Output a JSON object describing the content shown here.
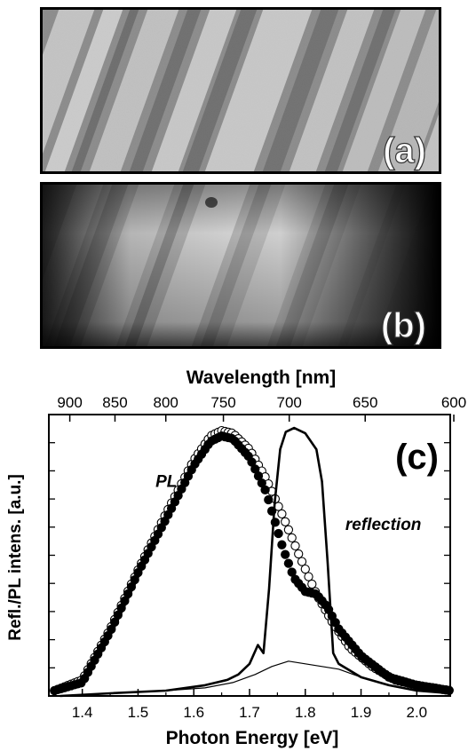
{
  "panels": {
    "a": {
      "label": "(a)"
    },
    "b": {
      "label": "(b)"
    },
    "c": {
      "label": "(c)"
    }
  },
  "chart_data": {
    "type": "scatter",
    "title": "",
    "xlabel": "Photon Energy [eV]",
    "ylabel": "Refl./PL intens. [a.u.]",
    "xlim": [
      1.34,
      2.06
    ],
    "ylim": [
      0,
      1.05
    ],
    "x_ticks": [
      "1.4",
      "1.5",
      "1.6",
      "1.7",
      "1.8",
      "1.9",
      "2.0"
    ],
    "x_tick_values": [
      1.4,
      1.5,
      1.6,
      1.7,
      1.8,
      1.9,
      2.0
    ],
    "top_axis": {
      "label": "Wavelength [nm]",
      "ticks": [
        "900",
        "850",
        "800",
        "750",
        "700",
        "650",
        "600"
      ],
      "tick_values": [
        900,
        850,
        800,
        750,
        700,
        650,
        600
      ]
    },
    "y_tick_count": 9,
    "grid": false,
    "annotations": [
      {
        "text": "PL",
        "x": 1.57,
        "y": 0.78
      },
      {
        "text": "reflection",
        "x": 1.94,
        "y": 0.62
      }
    ],
    "series": [
      {
        "marker": "open-circle",
        "x": [
          1.35,
          1.4,
          1.45,
          1.5,
          1.55,
          1.6,
          1.63,
          1.65,
          1.67,
          1.7,
          1.73,
          1.76,
          1.79,
          1.82,
          1.85,
          1.88,
          1.92,
          1.96,
          2.0,
          2.06
        ],
        "y": [
          0.02,
          0.06,
          0.25,
          0.47,
          0.68,
          0.88,
          0.97,
          0.99,
          0.98,
          0.92,
          0.81,
          0.67,
          0.52,
          0.38,
          0.27,
          0.18,
          0.11,
          0.06,
          0.04,
          0.02
        ]
      },
      {
        "marker": "filled-circle",
        "x": [
          1.35,
          1.4,
          1.45,
          1.5,
          1.55,
          1.6,
          1.63,
          1.65,
          1.67,
          1.7,
          1.73,
          1.76,
          1.78,
          1.8,
          1.82,
          1.84,
          1.86,
          1.9,
          1.95,
          2.0,
          2.06
        ],
        "y": [
          0.02,
          0.05,
          0.24,
          0.46,
          0.66,
          0.86,
          0.95,
          0.97,
          0.96,
          0.89,
          0.76,
          0.55,
          0.44,
          0.39,
          0.38,
          0.33,
          0.25,
          0.15,
          0.07,
          0.04,
          0.02
        ]
      },
      {
        "marker": "thick-line",
        "x": [
          1.36,
          1.45,
          1.55,
          1.62,
          1.66,
          1.68,
          1.7,
          1.715,
          1.725,
          1.735,
          1.745,
          1.755,
          1.765,
          1.78,
          1.8,
          1.82,
          1.83,
          1.84,
          1.85,
          1.86,
          1.9,
          1.95,
          2.0,
          2.06
        ],
        "y": [
          0.0,
          0.01,
          0.02,
          0.04,
          0.06,
          0.08,
          0.12,
          0.19,
          0.16,
          0.4,
          0.72,
          0.92,
          0.985,
          1.0,
          0.98,
          0.92,
          0.8,
          0.5,
          0.16,
          0.12,
          0.07,
          0.04,
          0.02,
          0.01
        ]
      },
      {
        "marker": "thin-line",
        "x": [
          1.36,
          1.45,
          1.55,
          1.62,
          1.67,
          1.71,
          1.74,
          1.77,
          1.8,
          1.83,
          1.86,
          1.9,
          1.95,
          2.0,
          2.06
        ],
        "y": [
          0.0,
          0.01,
          0.02,
          0.03,
          0.05,
          0.08,
          0.11,
          0.13,
          0.12,
          0.11,
          0.1,
          0.07,
          0.04,
          0.02,
          0.01
        ]
      }
    ]
  }
}
